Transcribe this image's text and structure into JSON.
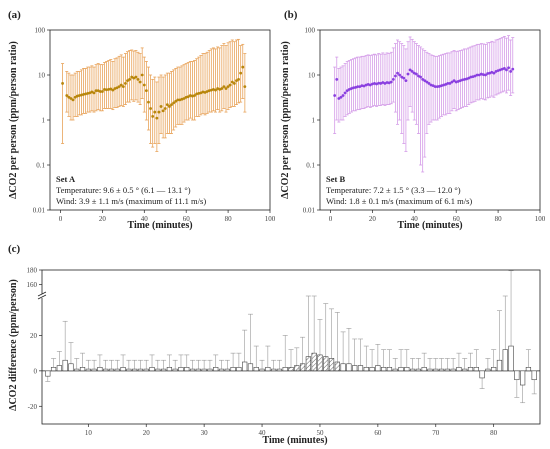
{
  "figure": {
    "panel_a_letter": "(a)",
    "panel_b_letter": "(b)",
    "panel_c_letter": "(c)"
  },
  "colors": {
    "set_a": "#b8860b",
    "set_a_err": "#e8a35a",
    "set_b": "#8a3fe0",
    "set_b_err": "#d49ce8",
    "bars": "#444444",
    "err_c": "#999999"
  },
  "chart_data": [
    {
      "type": "scatter",
      "panel": "a",
      "xlabel": "Time (minutes)",
      "ylabel": "ΔCO2 per person (ppm/person ratio)",
      "xlim": [
        -5,
        100
      ],
      "ylim": [
        0.01,
        100
      ],
      "yscale": "log",
      "xticks": [
        "0",
        "20",
        "40",
        "60",
        "80",
        "100"
      ],
      "yticks": [
        "0.01",
        "0.1",
        "1",
        "10",
        "100"
      ],
      "annotation": {
        "set": "Set A",
        "temperature": "Temperature: 9.6 ± 0.5 ° (6.1 — 13.1 °)",
        "wind": "Wind: 3.9 ± 1.1 m/s (maximum of 11.1 m/s)"
      },
      "x": [
        1,
        3,
        4,
        5,
        6,
        7,
        8,
        9,
        10,
        11,
        12,
        13,
        14,
        15,
        16,
        17,
        18,
        19,
        20,
        21,
        22,
        23,
        24,
        25,
        26,
        27,
        28,
        29,
        30,
        31,
        32,
        33,
        34,
        35,
        36,
        37,
        38,
        39,
        40,
        41,
        42,
        43,
        44,
        45,
        46,
        47,
        48,
        49,
        50,
        51,
        52,
        53,
        54,
        55,
        56,
        57,
        58,
        59,
        60,
        61,
        62,
        63,
        64,
        65,
        66,
        67,
        68,
        69,
        70,
        71,
        72,
        73,
        74,
        75,
        76,
        77,
        78,
        79,
        80,
        81,
        82,
        83,
        84,
        85,
        86,
        87,
        88
      ],
      "y": [
        6.5,
        3.5,
        3.2,
        3.0,
        2.8,
        3.2,
        3.4,
        3.5,
        3.6,
        3.7,
        3.8,
        3.9,
        4.0,
        4.2,
        4.0,
        4.5,
        4.5,
        4.3,
        4.3,
        4.8,
        4.7,
        4.8,
        4.9,
        4.6,
        5.0,
        5.2,
        5.5,
        6.0,
        5.5,
        6.5,
        7.5,
        8.0,
        9.0,
        8.5,
        9.0,
        8.0,
        7.0,
        10.0,
        6.0,
        4.5,
        2.5,
        1.8,
        1.2,
        1.5,
        1.1,
        1.5,
        2.0,
        1.6,
        1.8,
        2.2,
        2.0,
        2.2,
        2.4,
        2.6,
        2.8,
        2.8,
        2.9,
        3.0,
        3.2,
        3.3,
        3.5,
        3.4,
        3.5,
        3.8,
        3.9,
        4.0,
        4.2,
        4.1,
        4.3,
        4.5,
        4.6,
        4.8,
        4.6,
        5.0,
        4.8,
        5.0,
        5.5,
        5.0,
        5.5,
        6.0,
        7.0,
        6.5,
        7.5,
        8.0,
        11.0,
        15.0,
        5.5
      ],
      "err_low": [
        0.3,
        1.5,
        1.2,
        1.0,
        1.0,
        1.2,
        1.2,
        1.3,
        1.3,
        1.4,
        1.4,
        1.5,
        1.5,
        1.6,
        1.5,
        1.6,
        1.7,
        1.6,
        1.6,
        1.8,
        1.8,
        1.8,
        1.8,
        1.7,
        1.9,
        1.9,
        2.0,
        2.1,
        2.0,
        2.2,
        2.5,
        2.5,
        2.8,
        2.6,
        2.8,
        2.5,
        2.2,
        3.0,
        1.5,
        1.0,
        0.6,
        0.3,
        0.25,
        0.3,
        0.2,
        0.3,
        0.5,
        0.4,
        0.4,
        0.5,
        0.5,
        0.5,
        0.6,
        0.7,
        0.8,
        0.8,
        0.8,
        0.9,
        1.0,
        1.0,
        1.1,
        1.0,
        1.0,
        1.2,
        1.2,
        1.3,
        1.4,
        1.3,
        1.4,
        1.5,
        1.5,
        1.6,
        1.5,
        1.7,
        1.5,
        1.6,
        1.8,
        1.5,
        1.7,
        1.9,
        2.0,
        2.0,
        2.2,
        2.4,
        2.5,
        3.0,
        1.5
      ],
      "err_high": [
        18,
        12,
        11,
        10,
        10,
        11,
        12,
        12,
        13,
        14,
        14,
        15,
        15,
        16,
        15,
        17,
        18,
        17,
        17,
        19,
        20,
        21,
        22,
        20,
        23,
        24,
        26,
        28,
        25,
        30,
        33,
        35,
        36,
        34,
        35,
        32,
        30,
        40,
        25,
        20,
        15,
        10,
        8,
        9,
        7,
        9,
        10,
        9,
        10,
        11,
        11,
        12,
        13,
        14,
        15,
        15,
        16,
        17,
        18,
        19,
        20,
        20,
        21,
        23,
        25,
        27,
        30,
        30,
        32,
        35,
        38,
        40,
        38,
        42,
        40,
        45,
        50,
        45,
        52,
        55,
        60,
        55,
        60,
        62,
        45,
        48,
        30
      ]
    },
    {
      "type": "scatter",
      "panel": "b",
      "xlabel": "Time (minutes)",
      "ylabel": "ΔCO2 per person (ppm/person ratio)",
      "xlim": [
        -5,
        100
      ],
      "ylim": [
        0.01,
        100
      ],
      "yscale": "log",
      "xticks": [
        "0",
        "20",
        "40",
        "60",
        "80",
        "100"
      ],
      "yticks": [
        "0.01",
        "0.1",
        "1",
        "10",
        "100"
      ],
      "annotation": {
        "set": "Set B",
        "temperature": "Temperature: 7.2 ± 1.5 ° (3.3 — 12.0 °)",
        "wind": "Wind: 1.8 ± 0.1 m/s (maximum of 6.1 m/s)"
      },
      "x": [
        2,
        3,
        4,
        5,
        6,
        7,
        8,
        9,
        10,
        11,
        12,
        13,
        14,
        15,
        16,
        17,
        18,
        19,
        20,
        21,
        22,
        23,
        24,
        25,
        26,
        27,
        28,
        29,
        30,
        31,
        32,
        33,
        34,
        35,
        36,
        37,
        38,
        39,
        40,
        41,
        42,
        43,
        44,
        45,
        46,
        47,
        48,
        49,
        50,
        51,
        52,
        53,
        54,
        55,
        56,
        57,
        58,
        59,
        60,
        61,
        62,
        63,
        64,
        65,
        66,
        67,
        68,
        69,
        70,
        71,
        72,
        73,
        74,
        75,
        76,
        77,
        78,
        79,
        80,
        81,
        82,
        83,
        84,
        85,
        86,
        87
      ],
      "y": [
        3.5,
        8.0,
        3.0,
        3.2,
        3.5,
        4.0,
        4.5,
        4.8,
        5.0,
        5.2,
        5.3,
        5.5,
        5.5,
        5.8,
        5.7,
        6.0,
        6.2,
        6.0,
        6.3,
        6.5,
        6.3,
        6.6,
        6.5,
        6.8,
        6.5,
        6.8,
        6.7,
        7.0,
        8.0,
        9.5,
        11.0,
        10.0,
        9.0,
        8.5,
        7.5,
        10.5,
        13.0,
        12.0,
        11.0,
        10.5,
        9.5,
        9.0,
        8.0,
        7.5,
        7.0,
        6.5,
        6.0,
        5.8,
        5.5,
        5.5,
        5.6,
        5.8,
        6.0,
        6.2,
        6.5,
        6.5,
        7.0,
        7.5,
        7.0,
        7.2,
        7.5,
        7.8,
        8.0,
        8.2,
        8.5,
        9.0,
        9.2,
        9.5,
        10.0,
        10.0,
        10.5,
        10.2,
        10.0,
        10.8,
        11.0,
        11.5,
        11.0,
        12.0,
        12.5,
        13.0,
        13.5,
        14.0,
        13.0,
        14.5,
        12.0,
        13.5
      ],
      "err_low": [
        0.5,
        1.0,
        0.9,
        1.0,
        1.0,
        1.2,
        1.3,
        1.4,
        1.5,
        1.6,
        1.6,
        1.7,
        1.7,
        1.8,
        1.8,
        1.9,
        2.0,
        1.9,
        2.0,
        2.1,
        2.0,
        2.1,
        2.1,
        2.2,
        2.1,
        2.2,
        2.2,
        2.3,
        2.5,
        1.5,
        0.8,
        1.0,
        0.5,
        0.3,
        0.2,
        1.0,
        2.0,
        1.5,
        1.0,
        0.8,
        0.5,
        0.1,
        0.07,
        0.15,
        0.5,
        0.8,
        0.9,
        1.0,
        1.0,
        1.0,
        1.1,
        1.2,
        1.3,
        1.3,
        1.4,
        1.4,
        1.6,
        1.8,
        1.6,
        1.7,
        1.8,
        1.9,
        2.0,
        2.0,
        2.2,
        2.4,
        2.5,
        2.6,
        2.8,
        2.8,
        3.0,
        2.9,
        2.8,
        3.1,
        3.2,
        3.4,
        3.2,
        3.6,
        3.8,
        4.0,
        4.2,
        4.4,
        4.0,
        4.6,
        3.5,
        4.0
      ],
      "err_high": [
        15,
        25,
        14,
        15,
        16,
        18,
        20,
        21,
        22,
        23,
        24,
        25,
        25,
        26,
        26,
        27,
        28,
        27,
        28,
        29,
        28,
        30,
        29,
        31,
        29,
        31,
        30,
        32,
        40,
        50,
        60,
        55,
        50,
        45,
        38,
        55,
        70,
        62,
        55,
        50,
        45,
        42,
        38,
        35,
        32,
        30,
        28,
        27,
        26,
        26,
        27,
        28,
        29,
        30,
        31,
        31,
        33,
        35,
        33,
        34,
        35,
        36,
        38,
        38,
        40,
        42,
        44,
        45,
        48,
        48,
        50,
        49,
        48,
        52,
        53,
        56,
        54,
        60,
        62,
        65,
        68,
        72,
        66,
        75,
        60,
        68
      ]
    },
    {
      "type": "bar",
      "panel": "c",
      "xlabel": "Time (minutes)",
      "ylabel": "ΔCO2 difference (ppm/person)",
      "xlim": [
        2,
        88
      ],
      "ylim": [
        -30,
        180
      ],
      "axis_break": [
        40,
        150
      ],
      "xticks": [
        "10",
        "20",
        "30",
        "40",
        "50",
        "60",
        "70",
        "80"
      ],
      "yticks": [
        "-20",
        "0",
        "20",
        "160",
        "180"
      ],
      "x": [
        3,
        4,
        5,
        6,
        7,
        8,
        9,
        10,
        11,
        12,
        13,
        14,
        15,
        16,
        17,
        18,
        19,
        20,
        21,
        22,
        23,
        24,
        25,
        26,
        27,
        28,
        29,
        30,
        31,
        32,
        33,
        34,
        35,
        36,
        37,
        38,
        39,
        40,
        41,
        42,
        43,
        44,
        45,
        46,
        47,
        48,
        49,
        50,
        51,
        52,
        53,
        54,
        55,
        56,
        57,
        58,
        59,
        60,
        61,
        62,
        63,
        64,
        65,
        66,
        67,
        68,
        69,
        70,
        71,
        72,
        73,
        74,
        75,
        76,
        77,
        78,
        79,
        80,
        81,
        82,
        83,
        84,
        85,
        86,
        87
      ],
      "values": [
        -3,
        2,
        3,
        6,
        4,
        1,
        2,
        1,
        1,
        2,
        1,
        1,
        1,
        2,
        1,
        1,
        1,
        1,
        2,
        1,
        1,
        2,
        1,
        2,
        2,
        1,
        1,
        1,
        1,
        2,
        1,
        1,
        2,
        2,
        5,
        4,
        2,
        1,
        2,
        1,
        1,
        2,
        2,
        3,
        4,
        8,
        10,
        9,
        8,
        7,
        5,
        4,
        4,
        3,
        3,
        2,
        2,
        3,
        2,
        2,
        1,
        2,
        2,
        1,
        1,
        2,
        1,
        1,
        1,
        1,
        1,
        2,
        1,
        2,
        2,
        -4,
        1,
        2,
        6,
        12,
        14,
        -5,
        -8,
        2,
        -5
      ],
      "err_up": [
        4,
        5,
        8,
        22,
        12,
        6,
        8,
        5,
        5,
        7,
        5,
        5,
        5,
        7,
        5,
        5,
        5,
        5,
        7,
        5,
        5,
        7,
        5,
        7,
        7,
        5,
        5,
        5,
        5,
        7,
        5,
        5,
        8,
        8,
        18,
        28,
        12,
        5,
        12,
        5,
        5,
        18,
        10,
        10,
        15,
        42,
        32,
        20,
        30,
        28,
        28,
        18,
        20,
        15,
        15,
        12,
        10,
        12,
        10,
        10,
        6,
        10,
        10,
        6,
        6,
        8,
        6,
        6,
        6,
        6,
        6,
        8,
        6,
        8,
        10,
        10,
        6,
        10,
        28,
        40,
        165,
        18,
        10,
        10,
        5
      ],
      "err_down": [
        3,
        3,
        4,
        4,
        4,
        3,
        3,
        3,
        3,
        3,
        3,
        3,
        3,
        3,
        3,
        3,
        3,
        3,
        3,
        3,
        3,
        3,
        3,
        3,
        3,
        3,
        3,
        3,
        3,
        3,
        3,
        3,
        3,
        3,
        5,
        5,
        4,
        3,
        4,
        3,
        3,
        4,
        4,
        4,
        5,
        7,
        8,
        7,
        7,
        6,
        6,
        5,
        5,
        5,
        5,
        4,
        4,
        5,
        4,
        4,
        3,
        4,
        4,
        3,
        3,
        4,
        3,
        3,
        3,
        3,
        3,
        4,
        3,
        4,
        6,
        6,
        4,
        5,
        8,
        10,
        12,
        10,
        10,
        4,
        8
      ],
      "hatched_from": 45,
      "hatched_to": 53
    }
  ]
}
